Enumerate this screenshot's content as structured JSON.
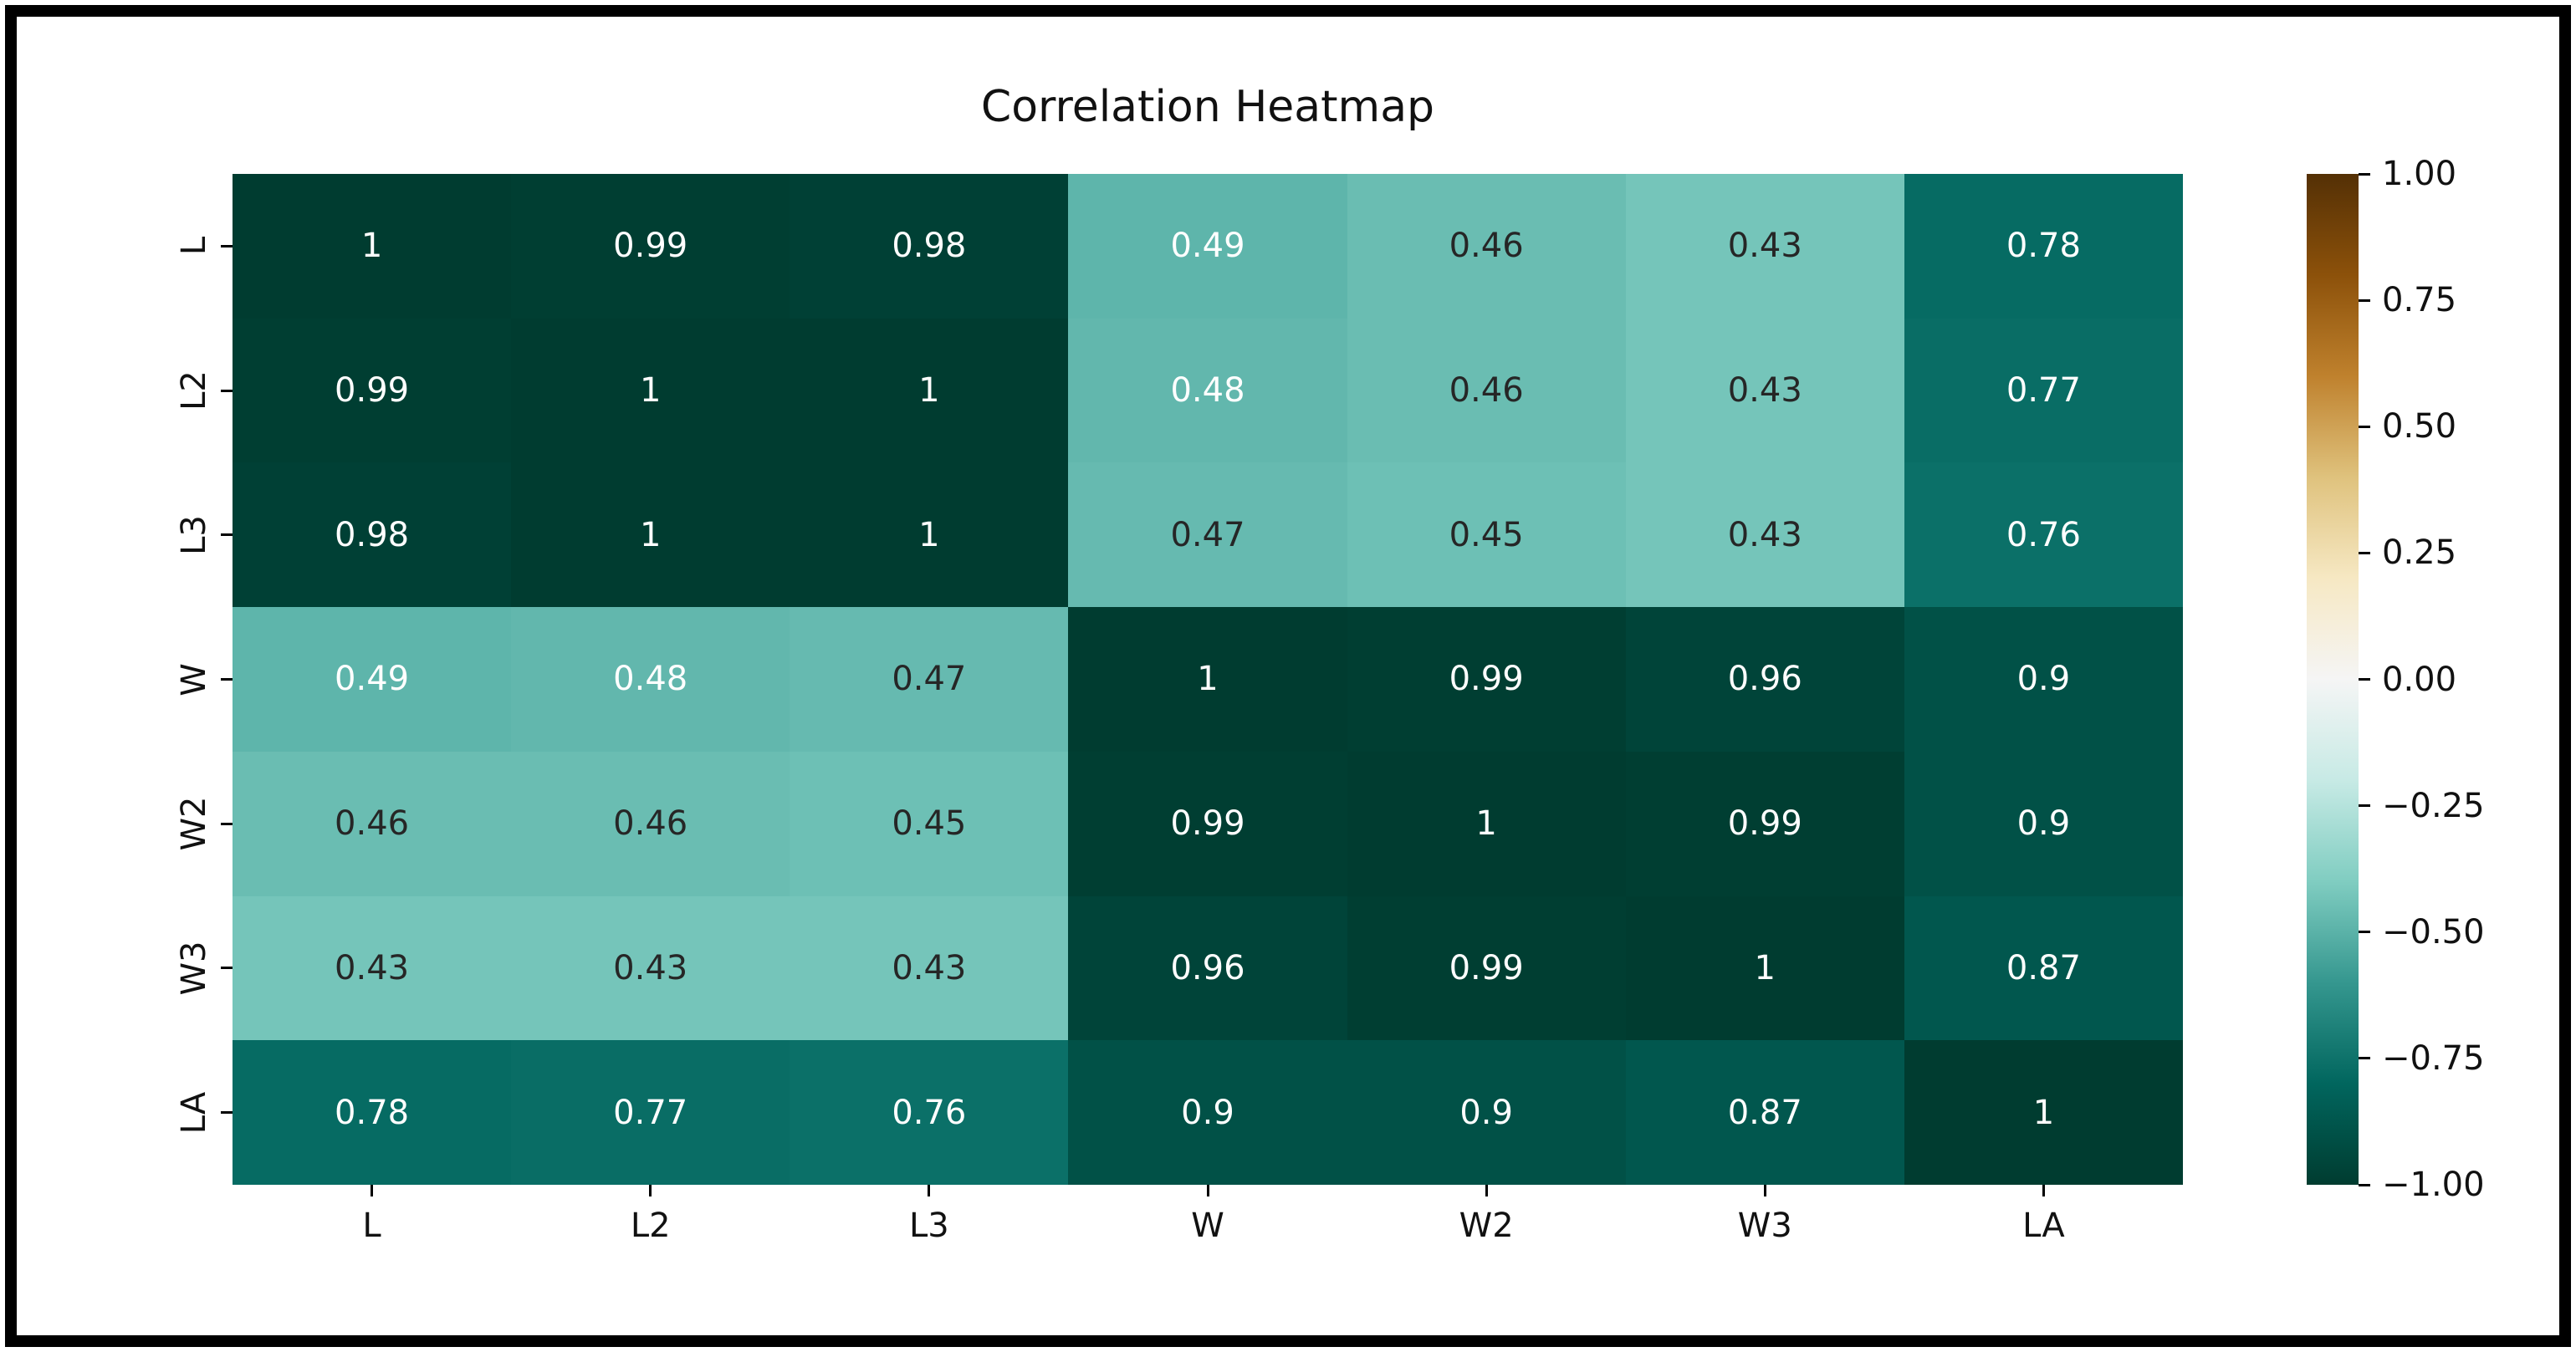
{
  "figure": {
    "title": "Correlation Heatmap",
    "background_color": "#ffffff",
    "frame_color": "#000000"
  },
  "chart_data": {
    "type": "heatmap",
    "title": "Correlation Heatmap",
    "x_labels": [
      "L",
      "L2",
      "L3",
      "W",
      "W2",
      "W3",
      "LA"
    ],
    "y_labels": [
      "L",
      "L2",
      "L3",
      "W",
      "W2",
      "W3",
      "LA"
    ],
    "matrix": [
      [
        1,
        0.99,
        0.98,
        0.49,
        0.46,
        0.43,
        0.78
      ],
      [
        0.99,
        1,
        1,
        0.48,
        0.46,
        0.43,
        0.77
      ],
      [
        0.98,
        1,
        1,
        0.47,
        0.45,
        0.43,
        0.76
      ],
      [
        0.49,
        0.48,
        0.47,
        1,
        0.99,
        0.96,
        0.9
      ],
      [
        0.46,
        0.46,
        0.45,
        0.99,
        1,
        0.99,
        0.9
      ],
      [
        0.43,
        0.43,
        0.43,
        0.96,
        0.99,
        1,
        0.87
      ],
      [
        0.78,
        0.77,
        0.76,
        0.9,
        0.9,
        0.87,
        1
      ]
    ],
    "vmin": -1,
    "vmax": 1,
    "colormap": "BrBG",
    "colormap_anchors": [
      "#543005",
      "#8c510a",
      "#bf812d",
      "#dfc27d",
      "#f6e8c3",
      "#f5f5f5",
      "#c7eae5",
      "#80cdc1",
      "#35978f",
      "#01665e",
      "#003c30"
    ],
    "annotation_colors": {
      "light": "#ffffff",
      "dark": "#262626"
    },
    "colorbar_ticks": [
      {
        "label": "1.00",
        "value": 1.0
      },
      {
        "label": "0.75",
        "value": 0.75
      },
      {
        "label": "0.50",
        "value": 0.5
      },
      {
        "label": "0.25",
        "value": 0.25
      },
      {
        "label": "0.00",
        "value": 0.0
      },
      {
        "label": "−0.25",
        "value": -0.25
      },
      {
        "label": "−0.50",
        "value": -0.5
      },
      {
        "label": "−0.75",
        "value": -0.75
      },
      {
        "label": "−1.00",
        "value": -1.0
      }
    ],
    "legend_position": "right",
    "grid": false
  }
}
